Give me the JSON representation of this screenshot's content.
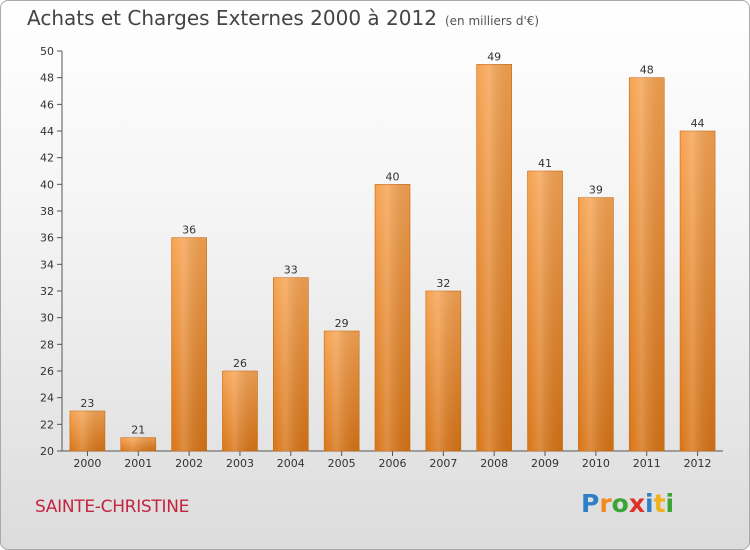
{
  "title": "Achats et Charges Externes 2000 à 2012",
  "unit": "(en milliers d'€)",
  "city": "SAINTE-CHRISTINE",
  "logo": {
    "letters": [
      "P",
      "r",
      "o",
      "x",
      "i",
      "t",
      "i"
    ],
    "colors": [
      "#2f7fc8",
      "#f08a1c",
      "#3aa535",
      "#e0302b",
      "#2f7fc8",
      "#f0b21c",
      "#3aa535"
    ]
  },
  "colors": {
    "bar_light": "#f6a352",
    "bar_dark": "#d87416",
    "axis": "#555555",
    "grid": "#d0d0d0"
  },
  "chart_data": {
    "type": "bar",
    "title": "Achats et Charges Externes 2000 à 2012",
    "xlabel": "",
    "ylabel": "",
    "categories": [
      "2000",
      "2001",
      "2002",
      "2003",
      "2004",
      "2005",
      "2006",
      "2007",
      "2008",
      "2009",
      "2010",
      "2011",
      "2012"
    ],
    "values": [
      23,
      21,
      36,
      26,
      33,
      29,
      40,
      32,
      49,
      41,
      39,
      48,
      44
    ],
    "ylim": [
      20,
      50
    ],
    "yticks": [
      20,
      22,
      24,
      26,
      28,
      30,
      32,
      34,
      36,
      38,
      40,
      42,
      44,
      46,
      48,
      50
    ],
    "grid": false
  }
}
